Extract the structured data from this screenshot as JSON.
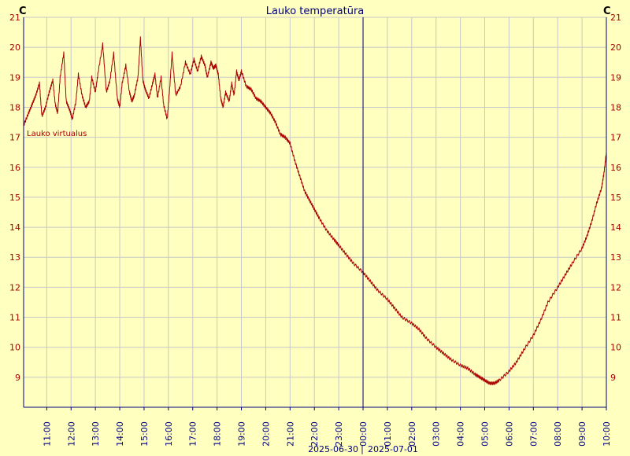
{
  "chart_data": {
    "type": "line",
    "title": "Lauko temperatūra",
    "unit_left": "C",
    "unit_right": "C",
    "ylim": [
      8,
      21
    ],
    "y_ticks": [
      9,
      10,
      11,
      12,
      13,
      14,
      15,
      16,
      17,
      18,
      19,
      20,
      21
    ],
    "x_tick_labels": [
      "11:00",
      "12:00",
      "13:00",
      "14:00",
      "15:00",
      "16:00",
      "17:00",
      "18:00",
      "19:00",
      "20:00",
      "21:00",
      "22:00",
      "23:00",
      "00:00",
      "01:00",
      "02:00",
      "03:00",
      "04:00",
      "05:00",
      "06:00",
      "07:00",
      "08:00",
      "09:00",
      "10:00"
    ],
    "x_range_hours": [
      10.05,
      34.0
    ],
    "date_left": "2025-06-30",
    "date_right": "2025-07-01",
    "midnight_hour": 24,
    "grid": true,
    "colors": {
      "line": "#aa0000",
      "axis": "#000080",
      "grid": "#c8c8c8",
      "background": "#ffffc0",
      "midnight": "#000080"
    },
    "series": [
      {
        "name": "Lauko virtualus",
        "x": [
          10.05,
          10.25,
          10.4,
          10.55,
          10.7,
          10.8,
          10.95,
          11.1,
          11.25,
          11.35,
          11.45,
          11.55,
          11.7,
          11.8,
          11.95,
          12.05,
          12.2,
          12.3,
          12.45,
          12.6,
          12.75,
          12.85,
          13.0,
          13.1,
          13.3,
          13.45,
          13.6,
          13.75,
          13.9,
          14.0,
          14.1,
          14.25,
          14.4,
          14.5,
          14.6,
          14.75,
          14.85,
          14.95,
          15.05,
          15.2,
          15.35,
          15.45,
          15.55,
          15.7,
          15.8,
          15.95,
          16.05,
          16.15,
          16.3,
          16.5,
          16.7,
          16.9,
          17.05,
          17.2,
          17.35,
          17.5,
          17.6,
          17.75,
          17.85,
          17.95,
          18.05,
          18.15,
          18.25,
          18.35,
          18.5,
          18.6,
          18.7,
          18.8,
          18.9,
          19.0,
          19.2,
          19.4,
          19.6,
          19.8,
          20.0,
          20.2,
          20.4,
          20.6,
          20.8,
          21.0,
          21.2,
          21.4,
          21.6,
          21.8,
          22.0,
          22.2,
          22.5,
          22.8,
          23.0,
          23.3,
          23.6,
          24.0,
          24.3,
          24.6,
          25.0,
          25.3,
          25.6,
          26.0,
          26.3,
          26.6,
          27.0,
          27.3,
          27.6,
          28.0,
          28.3,
          28.6,
          28.8,
          29.0,
          29.2,
          29.4,
          29.6,
          30.0,
          30.3,
          30.6,
          31.0,
          31.3,
          31.6,
          32.0,
          32.3,
          32.6,
          33.0,
          33.2,
          33.4,
          33.6,
          33.8,
          33.9,
          34.0
        ],
        "y": [
          17.4,
          17.8,
          18.1,
          18.4,
          18.8,
          17.7,
          18.0,
          18.5,
          18.9,
          18.1,
          17.8,
          19.0,
          19.8,
          18.2,
          17.9,
          17.6,
          18.2,
          19.1,
          18.4,
          18.0,
          18.2,
          19.0,
          18.5,
          19.1,
          20.1,
          18.5,
          18.9,
          19.8,
          18.3,
          18.0,
          18.8,
          19.4,
          18.5,
          18.2,
          18.4,
          19.0,
          20.3,
          18.9,
          18.6,
          18.3,
          18.8,
          19.1,
          18.3,
          19.0,
          18.1,
          17.6,
          18.6,
          19.8,
          18.4,
          18.7,
          19.5,
          19.1,
          19.6,
          19.2,
          19.7,
          19.4,
          19.0,
          19.5,
          19.3,
          19.4,
          19.1,
          18.3,
          18.0,
          18.5,
          18.2,
          18.8,
          18.4,
          19.2,
          18.9,
          19.2,
          18.7,
          18.6,
          18.3,
          18.2,
          18.0,
          17.8,
          17.5,
          17.1,
          17.0,
          16.8,
          16.2,
          15.7,
          15.2,
          14.9,
          14.6,
          14.3,
          13.9,
          13.6,
          13.4,
          13.1,
          12.8,
          12.5,
          12.2,
          11.9,
          11.6,
          11.3,
          11.0,
          10.8,
          10.6,
          10.3,
          10.0,
          9.8,
          9.6,
          9.4,
          9.3,
          9.1,
          9.0,
          8.9,
          8.8,
          8.8,
          8.9,
          9.2,
          9.5,
          9.9,
          10.4,
          10.9,
          11.5,
          12.0,
          12.4,
          12.8,
          13.3,
          13.7,
          14.2,
          14.8,
          15.3,
          15.8,
          16.5
        ]
      }
    ]
  }
}
